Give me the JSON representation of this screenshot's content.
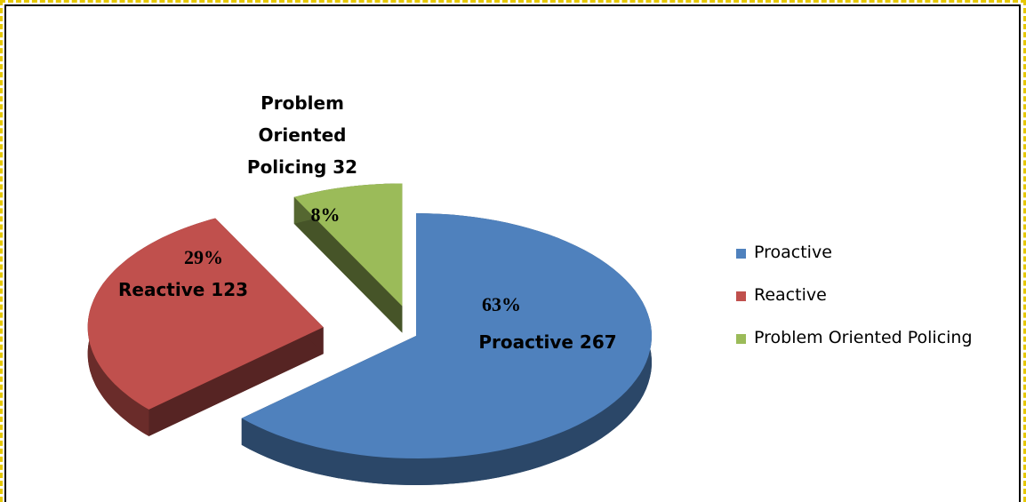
{
  "chart_data": {
    "type": "pie",
    "categories": [
      "Proactive",
      "Reactive",
      "Problem Oriented Policing"
    ],
    "values": [
      267,
      123,
      32
    ],
    "value_labels": [
      "Proactive 267",
      "Reactive 123",
      "Problem Oriented Policing 32"
    ],
    "percent_labels": [
      "63%",
      "29%",
      "8%"
    ],
    "colors": [
      "#4f81bd",
      "#c0504d",
      "#9bbb59"
    ],
    "legend": "right"
  }
}
